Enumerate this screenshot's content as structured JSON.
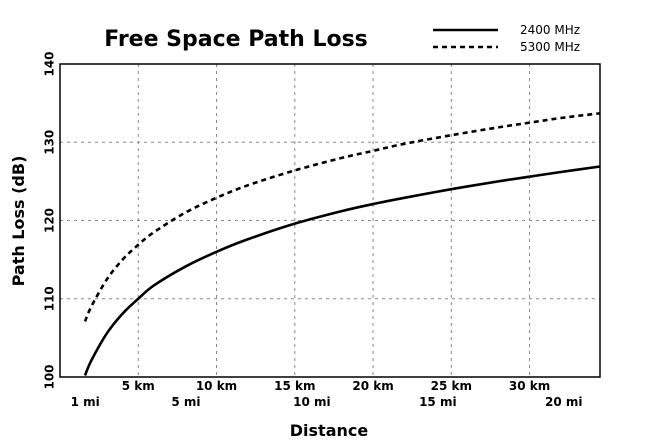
{
  "chart_data": {
    "type": "line",
    "title": "Free Space Path Loss",
    "xlabel": "Distance",
    "ylabel": "Path Loss (dB)",
    "xlim": [
      0,
      34.5
    ],
    "ylim": [
      100,
      140
    ],
    "x_unit": "km",
    "yticks": [
      100,
      110,
      120,
      130,
      140
    ],
    "xticks_km": [
      {
        "value": 5,
        "label": "5 km"
      },
      {
        "value": 10,
        "label": "10 km"
      },
      {
        "value": 15,
        "label": "15 km"
      },
      {
        "value": 20,
        "label": "20 km"
      },
      {
        "value": 25,
        "label": "25 km"
      },
      {
        "value": 30,
        "label": "30 km"
      }
    ],
    "xticks_mi": [
      {
        "value": 1.609,
        "label": "1 mi"
      },
      {
        "value": 8.047,
        "label": "5 mi"
      },
      {
        "value": 16.093,
        "label": "10 mi"
      },
      {
        "value": 24.14,
        "label": "15 mi"
      },
      {
        "value": 32.187,
        "label": "20 mi"
      }
    ],
    "grid": true,
    "legend_position": "top-right",
    "series": [
      {
        "name": "2400 MHz",
        "style": "solid",
        "color": "#000000",
        "x": [
          1.6,
          2,
          3,
          4,
          5,
          6,
          8,
          10,
          12,
          15,
          18,
          20,
          22,
          25,
          28,
          30,
          32,
          34.5
        ],
        "y": [
          100.2,
          102.1,
          105.6,
          108.1,
          110.0,
          111.7,
          114.1,
          116.0,
          117.6,
          119.6,
          121.2,
          122.1,
          122.9,
          124.0,
          125.0,
          125.6,
          126.2,
          126.9
        ]
      },
      {
        "name": "5300 MHz",
        "style": "dashed",
        "color": "#000000",
        "x": [
          1.6,
          2,
          3,
          4,
          5,
          6,
          8,
          10,
          12,
          15,
          18,
          20,
          22,
          25,
          28,
          30,
          32,
          34.5
        ],
        "y": [
          107.1,
          109.0,
          112.5,
          115.0,
          116.9,
          118.5,
          121.0,
          122.9,
          124.5,
          126.4,
          128.0,
          128.9,
          129.8,
          130.9,
          131.9,
          132.5,
          133.1,
          133.7
        ]
      }
    ]
  }
}
